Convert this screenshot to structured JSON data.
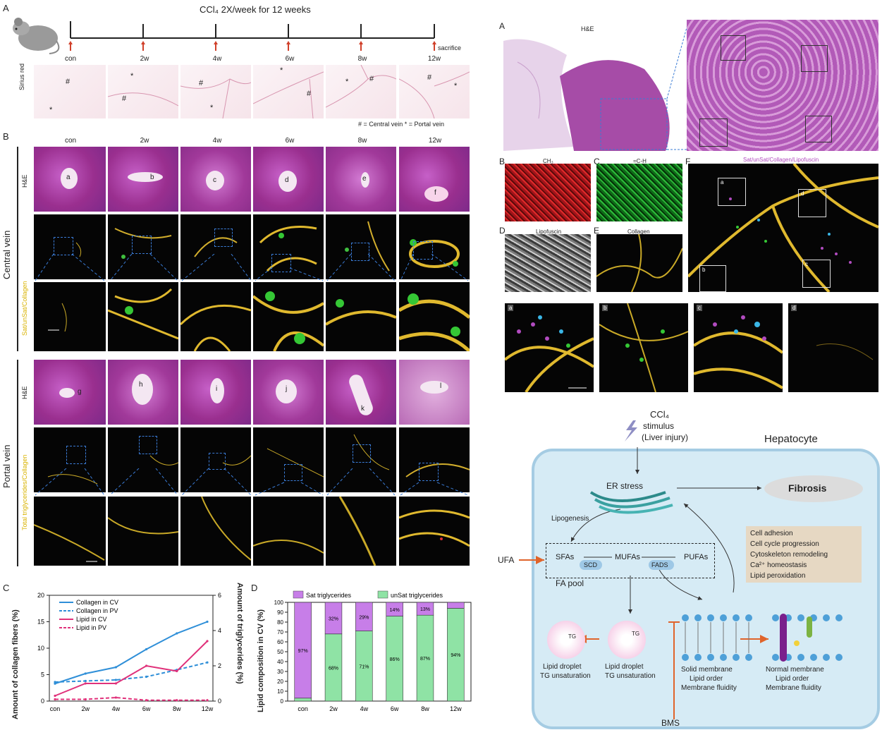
{
  "panel_A_left": {
    "letter": "A",
    "title": "CCl₄ 2X/week for 12 weeks",
    "timepoints": [
      "con",
      "2w",
      "4w",
      "6w",
      "8w",
      "12w"
    ],
    "sacrifice": "sacrifice",
    "stain_label": "Sirius red",
    "legend": "# = Central vein   * = Portal vein"
  },
  "panel_B_left": {
    "letter": "B",
    "columns": [
      "con",
      "2w",
      "4w",
      "6w",
      "8w",
      "12w"
    ],
    "row_he": "H&E",
    "central_vein": "Central vein",
    "portal_vein": "Portal vein",
    "cv_channel_label": "Sat/unSat/Collagen",
    "pv_channel_label": "Total triglycerides/Collagen",
    "cv_letters": [
      "a",
      "b",
      "c",
      "d",
      "e",
      "f"
    ],
    "pv_letters": [
      "g",
      "h",
      "i",
      "j",
      "k",
      "l"
    ]
  },
  "panel_C": {
    "letter": "C",
    "ylabel_left": "Amount of collagen fibers (%)",
    "ylabel_right": "Amount of triglycerides (%)"
  },
  "panel_D": {
    "letter": "D",
    "ylabel": "Lipid composition in CV (%)"
  },
  "chart_data": [
    {
      "type": "line",
      "x": [
        "con",
        "2w",
        "4w",
        "6w",
        "8w",
        "12w"
      ],
      "series": [
        {
          "name": "Collagen in CV",
          "axis": "left",
          "values": [
            3.3,
            5.2,
            6.4,
            9.8,
            12.8,
            15.0
          ]
        },
        {
          "name": "Collagen in PV",
          "axis": "left",
          "values": [
            3.6,
            3.8,
            4.0,
            4.6,
            5.9,
            7.3
          ]
        },
        {
          "name": "Lipid in CV",
          "axis": "right",
          "values": [
            0.3,
            1.0,
            1.0,
            2.0,
            1.7,
            3.4
          ]
        },
        {
          "name": "Lipid in PV",
          "axis": "right",
          "values": [
            0.1,
            0.1,
            0.2,
            0.05,
            0.05,
            0.05
          ]
        }
      ],
      "ylim_left": [
        0,
        20
      ],
      "yticks_left": [
        0,
        5,
        10,
        15,
        20
      ],
      "ylim_right": [
        0,
        6
      ],
      "yticks_right": [
        0,
        2,
        4,
        6
      ]
    },
    {
      "type": "bar",
      "categories": [
        "con",
        "2w",
        "4w",
        "6w",
        "8w",
        "12w"
      ],
      "series": [
        {
          "name": "Sat triglycerides",
          "color": "#c77ee8",
          "values": [
            97,
            32,
            29,
            14,
            13,
            6
          ]
        },
        {
          "name": "unSat triglycerides",
          "color": "#8fe3a5",
          "values": [
            3,
            68,
            71,
            86,
            87,
            94
          ]
        }
      ],
      "labels_sat": [
        "97%",
        "32%",
        "29%",
        "14%",
        "13%",
        ""
      ],
      "labels_unsat": [
        "",
        "68%",
        "71%",
        "86%",
        "87%",
        "94%"
      ],
      "ylim": [
        0,
        100
      ],
      "yticks": [
        0,
        10,
        20,
        30,
        40,
        50,
        60,
        70,
        80,
        90,
        100
      ]
    }
  ],
  "panel_right_top": {
    "A": "A",
    "he": "H&E",
    "B": "B",
    "b_title": "CH₃",
    "C": "C",
    "c_title": "=C-H",
    "D": "D",
    "d_title": "Lipofuscin",
    "E": "E",
    "e_title": "Collagen",
    "F": "F",
    "f_title": "Sat/unSat/Collagen/Lipofuscin",
    "roi": [
      "a",
      "b",
      "c",
      "d"
    ]
  },
  "diagram": {
    "stimulus": "CCl₄",
    "stimulus_sub": "stimulus",
    "stimulus_sub2": "(Liver injury)",
    "cell": "Hepatocyte",
    "er": "ER stress",
    "fibrosis": "Fibrosis",
    "lipogenesis": "Lipogenesis",
    "ufa": "UFA",
    "sfa": "SFAs",
    "scd": "SCD",
    "mufa": "MUFAs",
    "fads": "FADS",
    "pufa": "PUFAs",
    "pool": "FA pool",
    "tg": "TG",
    "ld1a": "Lipid droplet",
    "ld1b": "TG unsaturation",
    "ld2a": "Lipid droplet",
    "ld2b": "TG unsaturation",
    "sm1": "Solid membrane",
    "sm2": "Lipid order",
    "sm3": "Membrane fluidity",
    "nm1": "Normal membrane",
    "nm2": "Lipid order",
    "nm3": "Membrane fluidity",
    "effects": [
      "Cell adhesion",
      "Cell cycle progression",
      "Cytoskeleton remodeling",
      "Ca²⁺ homeostasis",
      "Lipid peroxidation"
    ],
    "bms": "BMS"
  }
}
